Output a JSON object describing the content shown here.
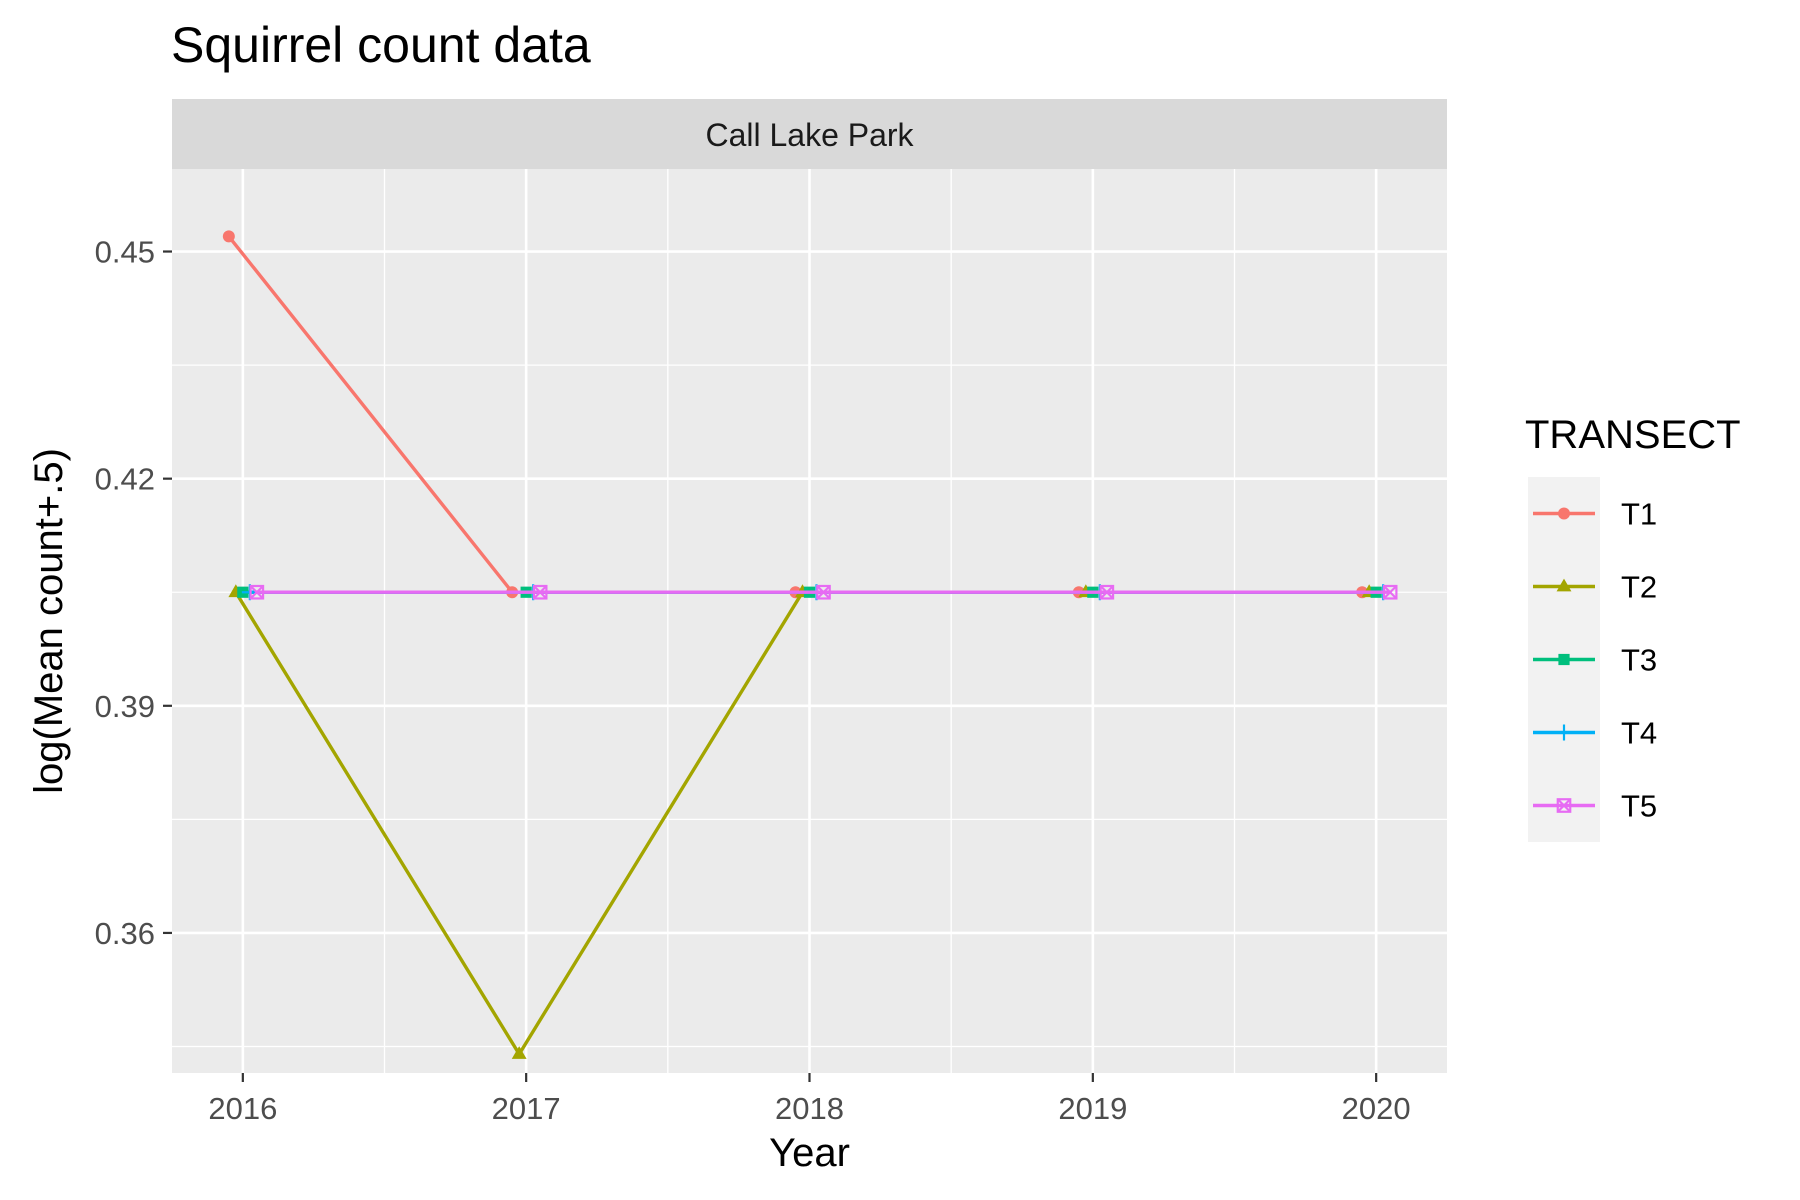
{
  "chart_data": {
    "type": "line",
    "title": "Squirrel count data",
    "facet": "Call Lake Park",
    "xlabel": "Year",
    "ylabel": "log(Mean count+.5)",
    "x": [
      2016,
      2017,
      2018,
      2019,
      2020
    ],
    "x_tick_labels": [
      "2016",
      "2017",
      "2018",
      "2019",
      "2020"
    ],
    "y_ticks": [
      0.36,
      0.39,
      0.42,
      0.45
    ],
    "y_tick_labels": [
      "0.36",
      "0.39",
      "0.42",
      "0.45"
    ],
    "xlim": [
      2015.75,
      2020.25
    ],
    "ylim": [
      0.3415,
      0.4609
    ],
    "grid": true,
    "legend": {
      "title": "TRANSECT",
      "position": "right"
    },
    "series": [
      {
        "name": "T1",
        "color": "#F8766D",
        "marker": "circle",
        "values": [
          0.452,
          0.405,
          0.405,
          0.405,
          0.405
        ]
      },
      {
        "name": "T2",
        "color": "#A3A500",
        "marker": "triangle",
        "values": [
          0.405,
          0.344,
          0.405,
          0.405,
          0.405
        ]
      },
      {
        "name": "T3",
        "color": "#00BF7D",
        "marker": "square",
        "values": [
          0.405,
          0.405,
          0.405,
          0.405,
          0.405
        ]
      },
      {
        "name": "T4",
        "color": "#00B0F6",
        "marker": "plus",
        "values": [
          0.405,
          0.405,
          0.405,
          0.405,
          0.405
        ]
      },
      {
        "name": "T5",
        "color": "#E76BF3",
        "marker": "boxcross",
        "values": [
          0.405,
          0.405,
          0.405,
          0.405,
          0.405
        ]
      }
    ]
  }
}
